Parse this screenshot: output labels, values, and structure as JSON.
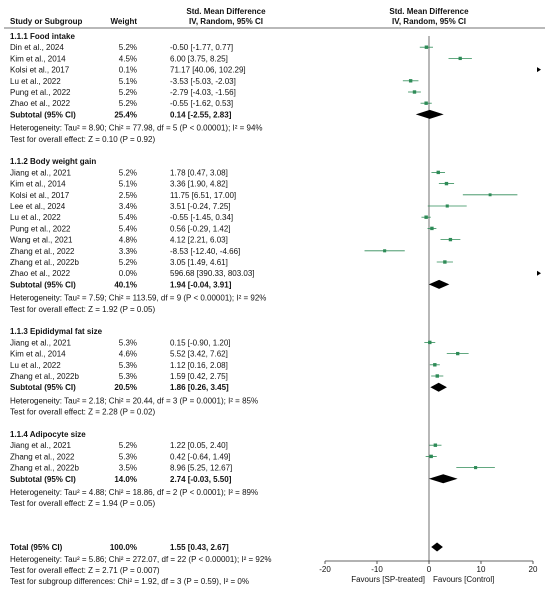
{
  "chart_data": {
    "type": "forest",
    "header": {
      "study_col": "Study or Subgroup",
      "weight_col": "Weight",
      "effect_col_line1": "Std. Mean Difference",
      "effect_col_line2": "IV, Random, 95% CI",
      "plot_col_line1": "Std. Mean Difference",
      "plot_col_line2": "IV, Random, 95% CI"
    },
    "colors": {
      "square": "#2e8b57",
      "ci_line": "#2e8b57",
      "diamond": "#000000",
      "text": "#111111",
      "axis": "#333333"
    },
    "axis": {
      "xlim": [
        -20,
        20
      ],
      "ticks": [
        "-20",
        "-10",
        "0",
        "10",
        "20"
      ],
      "tick_values": [
        -20,
        -10,
        0,
        10,
        20
      ],
      "left_label": "Favours [SP-treated]",
      "right_label": "Favours [Control]"
    },
    "subgroups": [
      {
        "title": "1.1.1 Food intake",
        "studies": [
          {
            "study": "Din et al., 2024",
            "weight": "5.2%",
            "effect": "-0.50 [-1.77, 0.77]",
            "smd": -0.5,
            "lo": -1.77,
            "hi": 0.77,
            "w": 5.2
          },
          {
            "study": "Kim et al., 2014",
            "weight": "4.5%",
            "effect": "6.00 [3.75, 8.25]",
            "smd": 6.0,
            "lo": 3.75,
            "hi": 8.25,
            "w": 4.5
          },
          {
            "study": "Kolsi et al., 2017",
            "weight": "0.1%",
            "effect": "71.17 [40.06, 102.29]",
            "smd": 71.17,
            "lo": 40.06,
            "hi": 102.29,
            "w": 0.1
          },
          {
            "study": "Lu et al., 2022",
            "weight": "5.1%",
            "effect": "-3.53 [-5.03, -2.03]",
            "smd": -3.53,
            "lo": -5.03,
            "hi": -2.03,
            "w": 5.1
          },
          {
            "study": "Pung et al., 2022",
            "weight": "5.2%",
            "effect": "-2.79 [-4.03, -1.56]",
            "smd": -2.79,
            "lo": -4.03,
            "hi": -1.56,
            "w": 5.2
          },
          {
            "study": "Zhao et al., 2022",
            "weight": "5.2%",
            "effect": "-0.55 [-1.62, 0.53]",
            "smd": -0.55,
            "lo": -1.62,
            "hi": 0.53,
            "w": 5.2
          }
        ],
        "subtotal": {
          "label": "Subtotal (95% CI)",
          "weight": "25.4%",
          "effect": "0.14 [-2.55, 2.83]",
          "smd": 0.14,
          "lo": -2.55,
          "hi": 2.83
        },
        "heterogeneity": "Heterogeneity: Tau² = 8.90; Chi² = 77.98, df = 5 (P < 0.00001); I² = 94%",
        "overall_test": "Test for overall effect: Z = 0.10 (P = 0.92)"
      },
      {
        "title": "1.1.2 Body weight gain",
        "studies": [
          {
            "study": "Jiang et al., 2021",
            "weight": "5.2%",
            "effect": "1.78 [0.47, 3.08]",
            "smd": 1.78,
            "lo": 0.47,
            "hi": 3.08,
            "w": 5.2
          },
          {
            "study": "Kim et al., 2014",
            "weight": "5.1%",
            "effect": "3.36 [1.90, 4.82]",
            "smd": 3.36,
            "lo": 1.9,
            "hi": 4.82,
            "w": 5.1
          },
          {
            "study": "Kolsi et al., 2017",
            "weight": "2.5%",
            "effect": "11.75 [6.51, 17.00]",
            "smd": 11.75,
            "lo": 6.51,
            "hi": 17.0,
            "w": 2.5
          },
          {
            "study": "Lee et al., 2024",
            "weight": "3.4%",
            "effect": "3.51 [-0.24, 7.25]",
            "smd": 3.51,
            "lo": -0.24,
            "hi": 7.25,
            "w": 3.4
          },
          {
            "study": "Lu et al., 2022",
            "weight": "5.4%",
            "effect": "-0.55 [-1.45, 0.34]",
            "smd": -0.55,
            "lo": -1.45,
            "hi": 0.34,
            "w": 5.4
          },
          {
            "study": "Pung et al., 2022",
            "weight": "5.4%",
            "effect": "0.56 [-0.29, 1.42]",
            "smd": 0.56,
            "lo": -0.29,
            "hi": 1.42,
            "w": 5.4
          },
          {
            "study": "Wang et al., 2021",
            "weight": "4.8%",
            "effect": "4.12 [2.21, 6.03]",
            "smd": 4.12,
            "lo": 2.21,
            "hi": 6.03,
            "w": 4.8
          },
          {
            "study": "Zhang et al., 2022",
            "weight": "3.3%",
            "effect": "-8.53 [-12.40, -4.66]",
            "smd": -8.53,
            "lo": -12.4,
            "hi": -4.66,
            "w": 3.3
          },
          {
            "study": "Zhang et al., 2022b",
            "weight": "5.2%",
            "effect": "3.05 [1.49, 4.61]",
            "smd": 3.05,
            "lo": 1.49,
            "hi": 4.61,
            "w": 5.2
          },
          {
            "study": "Zhao et al., 2022",
            "weight": "0.0%",
            "effect": "596.68 [390.33, 803.03]",
            "smd": 596.68,
            "lo": 390.33,
            "hi": 803.03,
            "w": 0.0
          }
        ],
        "subtotal": {
          "label": "Subtotal (95% CI)",
          "weight": "40.1%",
          "effect": "1.94 [-0.04, 3.91]",
          "smd": 1.94,
          "lo": -0.04,
          "hi": 3.91
        },
        "heterogeneity": "Heterogeneity: Tau² = 7.59; Chi² = 113.59, df = 9 (P < 0.00001); I² = 92%",
        "overall_test": "Test for overall effect: Z = 1.92 (P = 0.05)"
      },
      {
        "title": "1.1.3 Epididymal fat size",
        "studies": [
          {
            "study": "Jiang et al., 2021",
            "weight": "5.3%",
            "effect": "0.15 [-0.90, 1.20]",
            "smd": 0.15,
            "lo": -0.9,
            "hi": 1.2,
            "w": 5.3
          },
          {
            "study": "Kim et al., 2014",
            "weight": "4.6%",
            "effect": "5.52 [3.42, 7.62]",
            "smd": 5.52,
            "lo": 3.42,
            "hi": 7.62,
            "w": 4.6
          },
          {
            "study": "Lu et al., 2022",
            "weight": "5.3%",
            "effect": "1.12 [0.16, 2.08]",
            "smd": 1.12,
            "lo": 0.16,
            "hi": 2.08,
            "w": 5.3
          },
          {
            "study": "Zhang et al., 2022b",
            "weight": "5.3%",
            "effect": "1.59 [0.42, 2.75]",
            "smd": 1.59,
            "lo": 0.42,
            "hi": 2.75,
            "w": 5.3
          }
        ],
        "subtotal": {
          "label": "Subtotal (95% CI)",
          "weight": "20.5%",
          "effect": "1.86 [0.26, 3.45]",
          "smd": 1.86,
          "lo": 0.26,
          "hi": 3.45
        },
        "heterogeneity": "Heterogeneity: Tau² = 2.18; Chi² = 20.44, df = 3 (P = 0.0001); I² = 85%",
        "overall_test": "Test for overall effect: Z = 2.28 (P = 0.02)"
      },
      {
        "title": "1.1.4 Adipocyte size",
        "studies": [
          {
            "study": "Jiang et al., 2021",
            "weight": "5.2%",
            "effect": "1.22 [0.05, 2.40]",
            "smd": 1.22,
            "lo": 0.05,
            "hi": 2.4,
            "w": 5.2
          },
          {
            "study": "Zhang et al., 2022",
            "weight": "5.3%",
            "effect": "0.42 [-0.64, 1.49]",
            "smd": 0.42,
            "lo": -0.64,
            "hi": 1.49,
            "w": 5.3
          },
          {
            "study": "Zhang et al., 2022b",
            "weight": "3.5%",
            "effect": "8.96 [5.25, 12.67]",
            "smd": 8.96,
            "lo": 5.25,
            "hi": 12.67,
            "w": 3.5
          }
        ],
        "subtotal": {
          "label": "Subtotal (95% CI)",
          "weight": "14.0%",
          "effect": "2.74 [-0.03, 5.50]",
          "smd": 2.74,
          "lo": -0.03,
          "hi": 5.5
        },
        "heterogeneity": "Heterogeneity: Tau² = 4.88; Chi² = 18.86, df = 2 (P < 0.0001); I² = 89%",
        "overall_test": "Test for overall effect: Z = 1.94 (P = 0.05)"
      }
    ],
    "total": {
      "label": "Total (95% CI)",
      "weight": "100.0%",
      "effect": "1.55 [0.43, 2.67]",
      "smd": 1.55,
      "lo": 0.43,
      "hi": 2.67,
      "heterogeneity": "Heterogeneity: Tau² = 5.86; Chi² = 272.07, df = 22 (P < 0.00001); I² = 92%",
      "overall_test": "Test for overall effect: Z = 2.71 (P = 0.007)",
      "subgroup_test": "Test for subgroup differences: Chi² = 1.92, df = 3 (P = 0.59), I² = 0%"
    }
  }
}
